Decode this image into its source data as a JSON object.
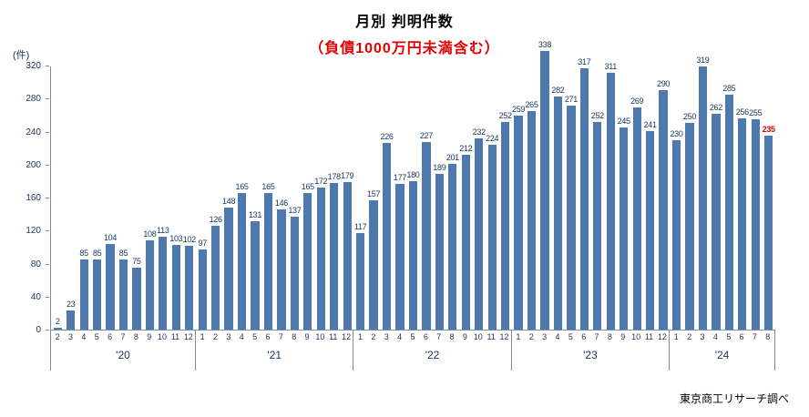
{
  "title": {
    "line1": "月別 判明件数",
    "line2": "（負債1000万円未満含む）"
  },
  "unit_label": "(件)",
  "source": "東京商工リサーチ調べ",
  "colors": {
    "bar": "#4e79ae",
    "axis_text": "#17365d",
    "axis_line": "#808a99",
    "value_label": "#17365d",
    "highlight_value": "#e60000",
    "subtitle": "#e60000"
  },
  "chart_data": {
    "type": "bar",
    "title": "月別 判明件数",
    "subtitle": "（負債1000万円未満含む）",
    "ylabel": "(件)",
    "xlabel": "",
    "ylim": [
      0,
      320
    ],
    "yticks": [
      0,
      40,
      80,
      120,
      160,
      200,
      240,
      280,
      320
    ],
    "grid": false,
    "legend": "none",
    "highlight_last_value": true,
    "groups": [
      {
        "year": "'20",
        "months": [
          "2",
          "3",
          "4",
          "5",
          "6",
          "7",
          "8",
          "9",
          "10",
          "11",
          "12"
        ],
        "values": [
          2,
          23,
          85,
          85,
          104,
          85,
          75,
          108,
          113,
          103,
          102
        ]
      },
      {
        "year": "'21",
        "months": [
          "1",
          "2",
          "3",
          "4",
          "5",
          "6",
          "7",
          "8",
          "9",
          "10",
          "11",
          "12"
        ],
        "values": [
          97,
          126,
          148,
          165,
          131,
          165,
          146,
          137,
          165,
          172,
          178,
          179
        ]
      },
      {
        "year": "'22",
        "months": [
          "1",
          "2",
          "3",
          "4",
          "5",
          "6",
          "7",
          "8",
          "9",
          "10",
          "11",
          "12"
        ],
        "values": [
          117,
          157,
          226,
          177,
          180,
          227,
          189,
          201,
          212,
          232,
          224,
          252
        ]
      },
      {
        "year": "'23",
        "months": [
          "1",
          "2",
          "3",
          "4",
          "5",
          "6",
          "7",
          "8",
          "9",
          "10",
          "11",
          "12"
        ],
        "values": [
          259,
          265,
          338,
          282,
          271,
          317,
          252,
          311,
          245,
          269,
          241,
          290
        ]
      },
      {
        "year": "'24",
        "months": [
          "1",
          "2",
          "3",
          "4",
          "5",
          "6",
          "7",
          "8"
        ],
        "values": [
          230,
          250,
          319,
          262,
          285,
          256,
          255,
          235
        ]
      }
    ]
  }
}
